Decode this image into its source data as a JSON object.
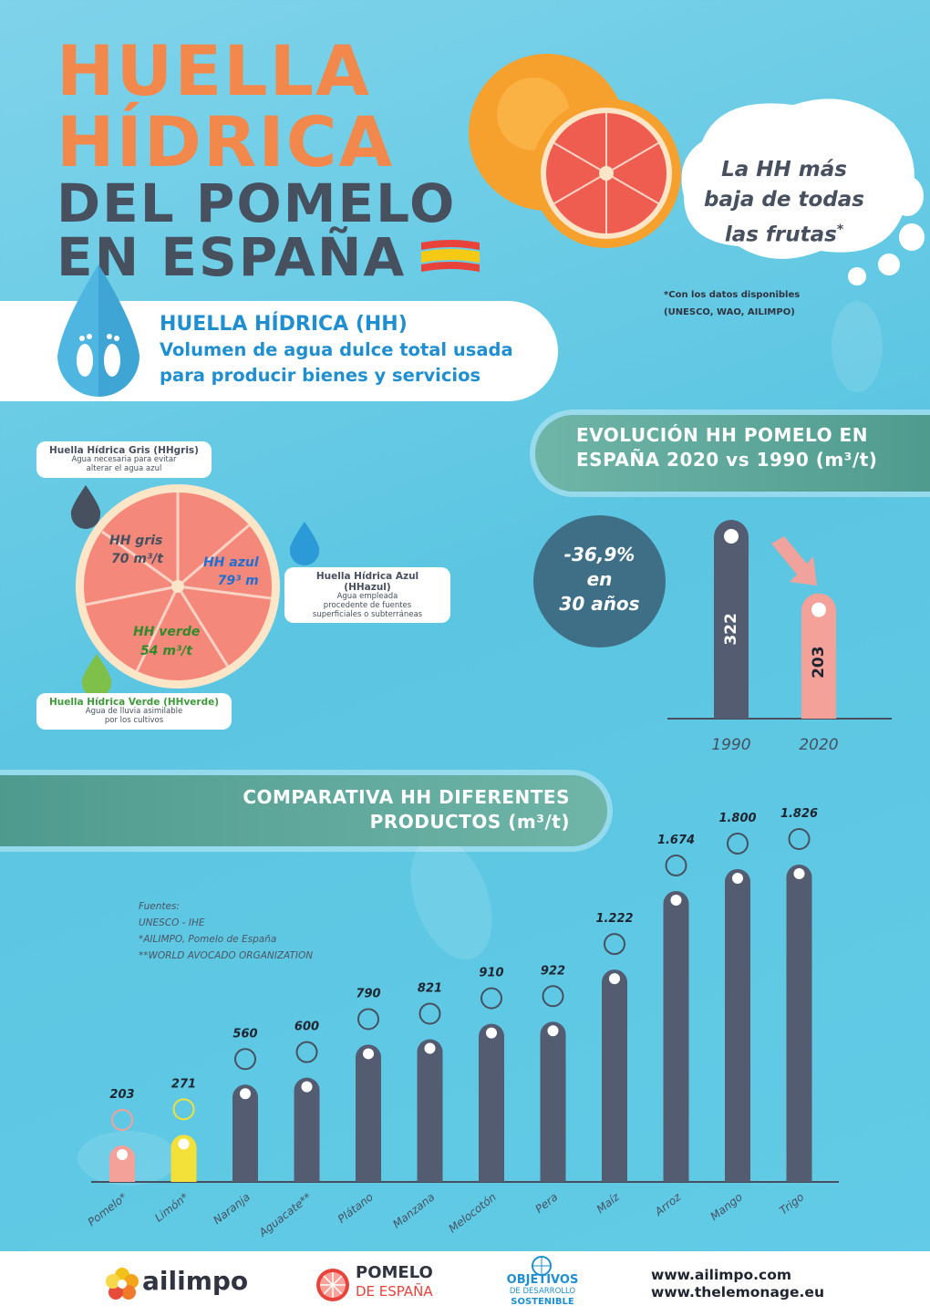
{
  "title": {
    "line1": "HUELLA",
    "line2": "HÍDRICA",
    "line3": "DEL POMELO",
    "line4": "EN ESPAÑA"
  },
  "bubble": {
    "text_line1": "La HH más",
    "text_line2": "baja de todas",
    "text_line3": "las frutas",
    "asterisk": "*",
    "note_line1": "*Con los datos disponibles",
    "note_line2": "(UNESCO, WAO, AILIMPO)"
  },
  "definition": {
    "title": "HUELLA HÍDRICA (HH)",
    "line1": "Volumen de agua dulce total usada",
    "line2": "para producir bienes y servicios"
  },
  "breakdown": {
    "gris": {
      "label": "HH gris",
      "value": "70 m³/t",
      "card_title": "Huella Hídrica Gris (HHgris)",
      "card_desc1": "Agua necesaria para evitar",
      "card_desc2": "alterar el agua azul"
    },
    "azul": {
      "label": "HH azul",
      "value": "79³ m",
      "card_title": "Huella Hídrica Azul (HHazul)",
      "card_desc1": "Agua empleada",
      "card_desc2": "procedente de fuentes",
      "card_desc3": "superficiales o subterráneas"
    },
    "verde": {
      "label": "HH verde",
      "value": "54 m³/t",
      "card_title": "Huella Hídrica Verde (HHverde)",
      "card_desc1": "Agua de lluvia asimilable",
      "card_desc2": "por los cultivos"
    }
  },
  "evolution": {
    "header_line1": "EVOLUCIÓN HH POMELO EN",
    "header_line2": "ESPAÑA 2020 vs 1990 (m³/t)",
    "change_line1": "-36,9%",
    "change_line2": "en",
    "change_line3": "30 años"
  },
  "comparison": {
    "header_line1": "COMPARATIVA HH DIFERENTES",
    "header_line2": "PRODUCTOS (m³/t)"
  },
  "sources": {
    "line1": "Fuentes:",
    "line2": "UNESCO - IHE",
    "line3": "*AILIMPO, Pomelo de España",
    "line4": "**WORLD AVOCADO ORGANIZATION"
  },
  "footer": {
    "ailimpo": "ailimpo",
    "pomelo_line1": "POMELO",
    "pomelo_line2": "DE ESPAÑA",
    "ods_line1": "OBJETIVOS",
    "ods_line2": "DE DESARROLLO",
    "ods_line3": "SOSTENIBLE",
    "url1": "www.ailimpo.com",
    "url2": "www.thelemonage.eu"
  },
  "colors": {
    "orange_title": "#f2884b",
    "dark": "#46505f",
    "pink_bar": "#f4a19a",
    "yellow_bar": "#f3e13a",
    "gray_bar": "#545c72",
    "teal": "#4f9a8e",
    "blue_text": "#1f8fd1",
    "green_text": "#3f9a3a"
  },
  "chart_data": [
    {
      "type": "bar",
      "categories": [
        "1990",
        "2020"
      ],
      "values": [
        322,
        203
      ],
      "value_labels": [
        "322",
        "203"
      ]
    },
    {
      "type": "bar",
      "categories": [
        "Pomelo*",
        "Limón*",
        "Naranja",
        "Aguacate**",
        "Plátano",
        "Manzana",
        "Melocotón",
        "Pera",
        "Maíz",
        "Arroz",
        "Mango",
        "Trigo"
      ],
      "values": [
        203,
        271,
        560,
        600,
        790,
        821,
        910,
        922,
        1222,
        1674,
        1800,
        1826
      ],
      "value_labels": [
        "203",
        "271",
        "560",
        "600",
        "790",
        "821",
        "910",
        "922",
        "1.222",
        "1.674",
        "1.800",
        "1.826"
      ],
      "bar_colors": [
        "#f4a19a",
        "#f3e13a",
        "#545c72",
        "#545c72",
        "#545c72",
        "#545c72",
        "#545c72",
        "#545c72",
        "#545c72",
        "#545c72",
        "#545c72",
        "#545c72"
      ]
    }
  ]
}
